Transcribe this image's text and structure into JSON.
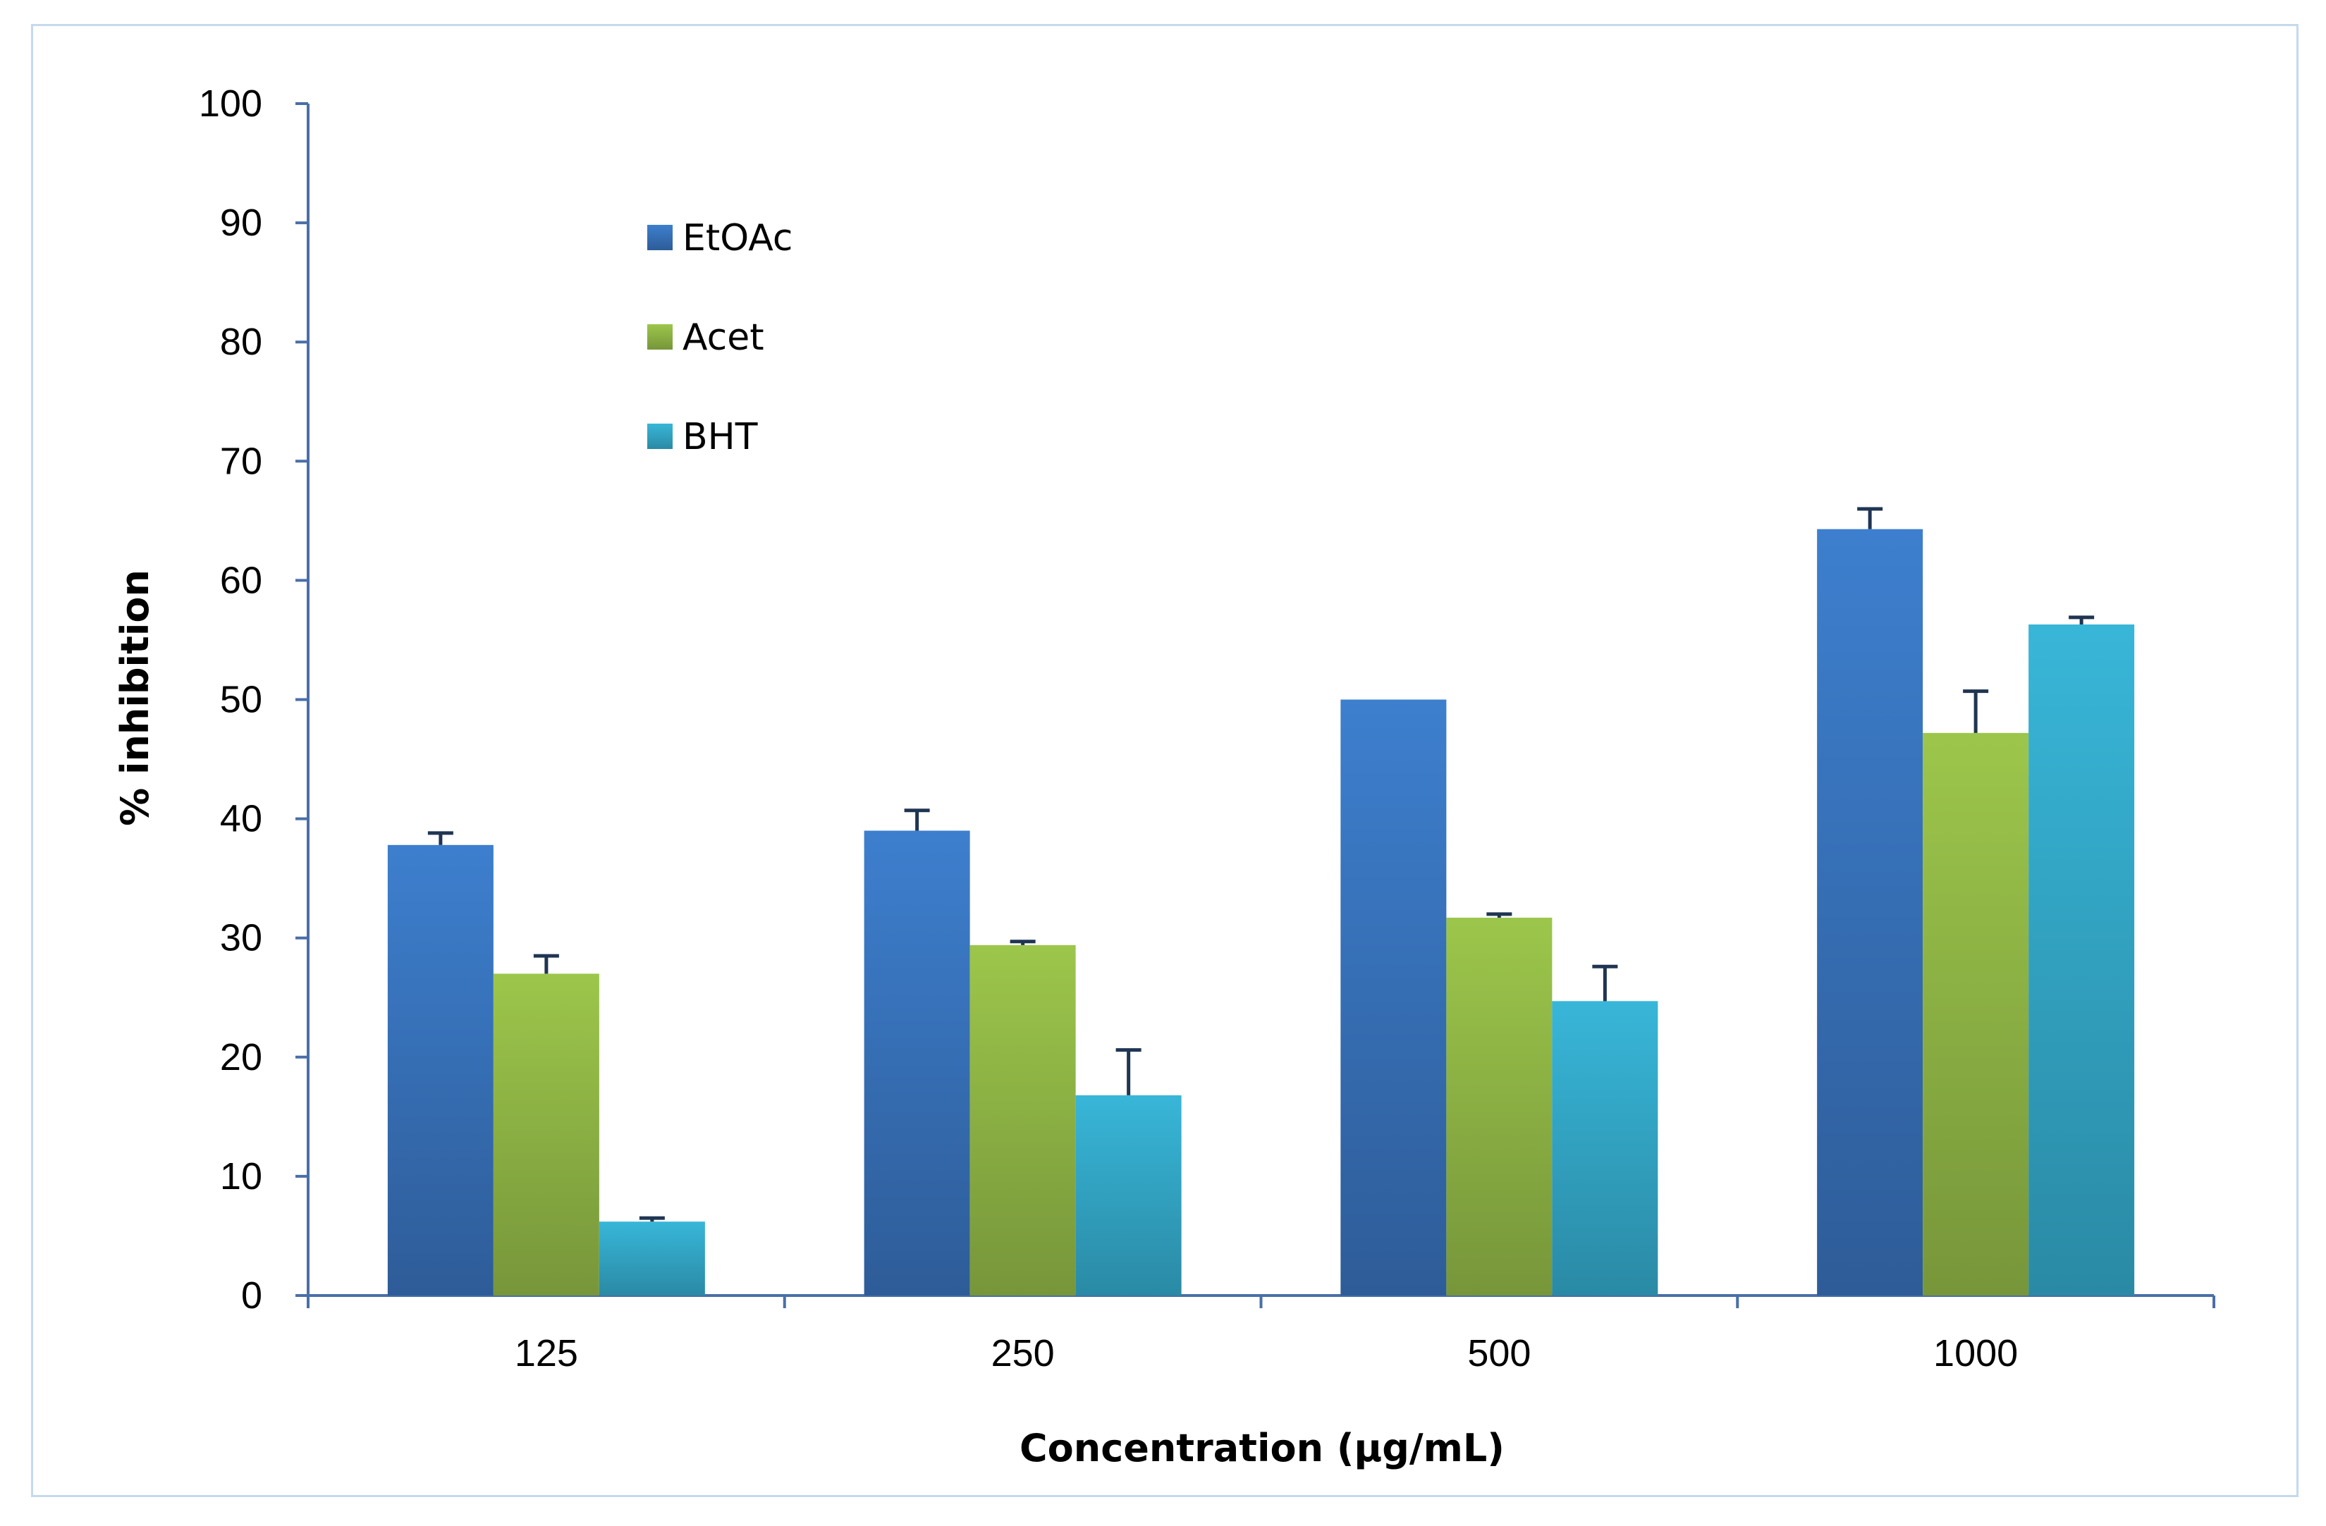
{
  "chart_data": {
    "type": "bar",
    "title": "",
    "xlabel": "Concentration (µg/mL)",
    "ylabel": "% inhibition",
    "ylim": [
      0,
      100
    ],
    "yticks": [
      0,
      10,
      20,
      30,
      40,
      50,
      60,
      70,
      80,
      90,
      100
    ],
    "categories": [
      "125",
      "250",
      "500",
      "1000"
    ],
    "legend_position": "top-left",
    "grid": false,
    "series": [
      {
        "name": "EtOAc",
        "color": "#3d7fce",
        "color_dark": "#2e5c98",
        "values": [
          37.8,
          39.0,
          50.0,
          64.3
        ],
        "errors": [
          1.0,
          1.7,
          0,
          1.7
        ]
      },
      {
        "name": "Acet",
        "color": "#9cc64b",
        "color_dark": "#77963a",
        "values": [
          27.0,
          29.4,
          31.7,
          47.2
        ],
        "errors": [
          1.5,
          0.3,
          0.3,
          3.5
        ]
      },
      {
        "name": "BHT",
        "color": "#38b6d8",
        "color_dark": "#2a8aa5",
        "values": [
          6.2,
          16.8,
          24.7,
          56.3
        ],
        "errors": [
          0.3,
          3.8,
          2.9,
          0.6
        ]
      }
    ]
  }
}
